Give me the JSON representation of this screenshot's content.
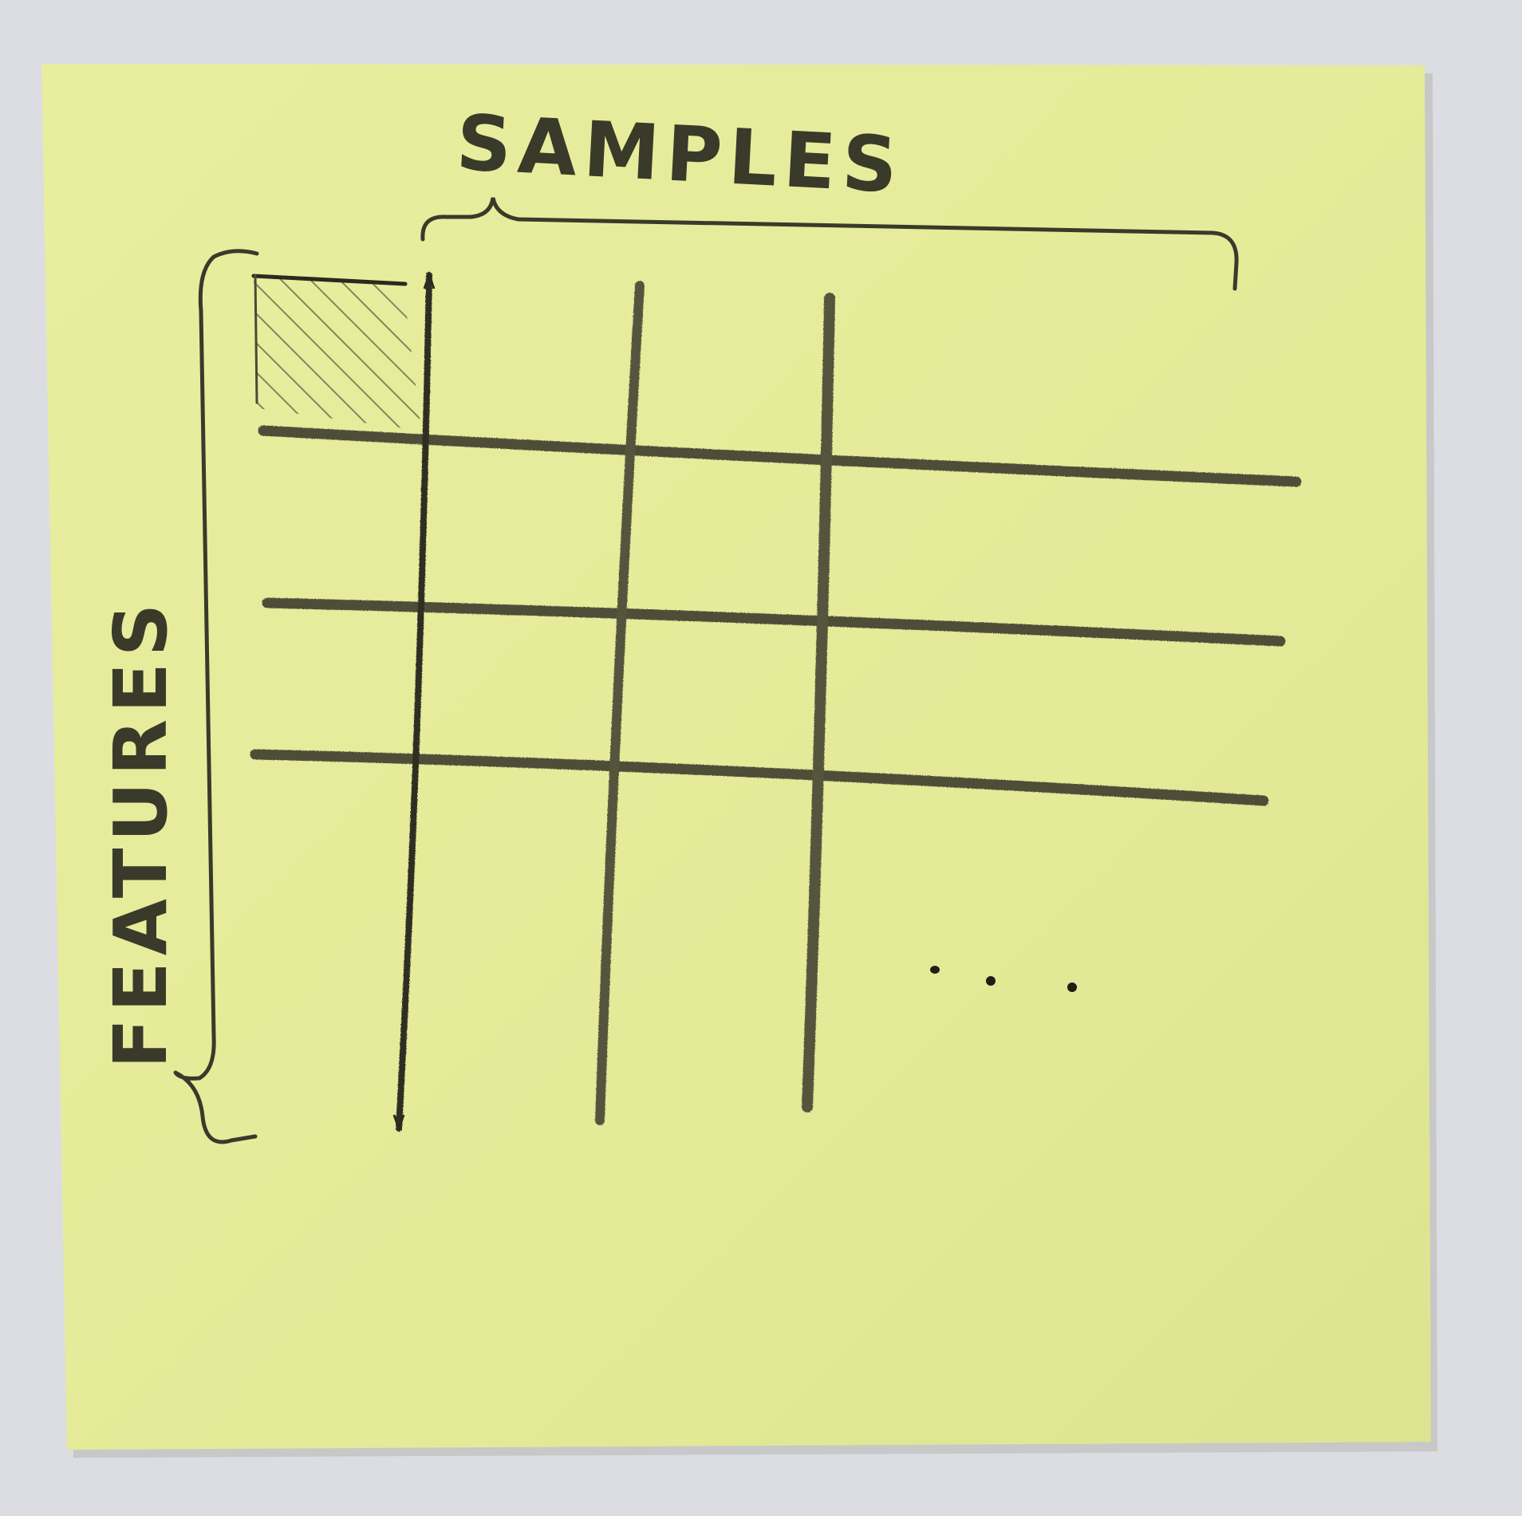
{
  "colors": {
    "background": "#dcdde3",
    "paper": "#e6ec9a",
    "paper_shade": "#d4da88",
    "pencil": "#4a4a35",
    "ink": "#2a2a1e"
  },
  "labels": {
    "samples": "SAMPLES",
    "features": "FEATURES"
  },
  "grid": {
    "columns_drawn": 3,
    "rows_drawn": 3,
    "highlighted_cell": "top-left"
  },
  "ellipsis_marker": "dots"
}
